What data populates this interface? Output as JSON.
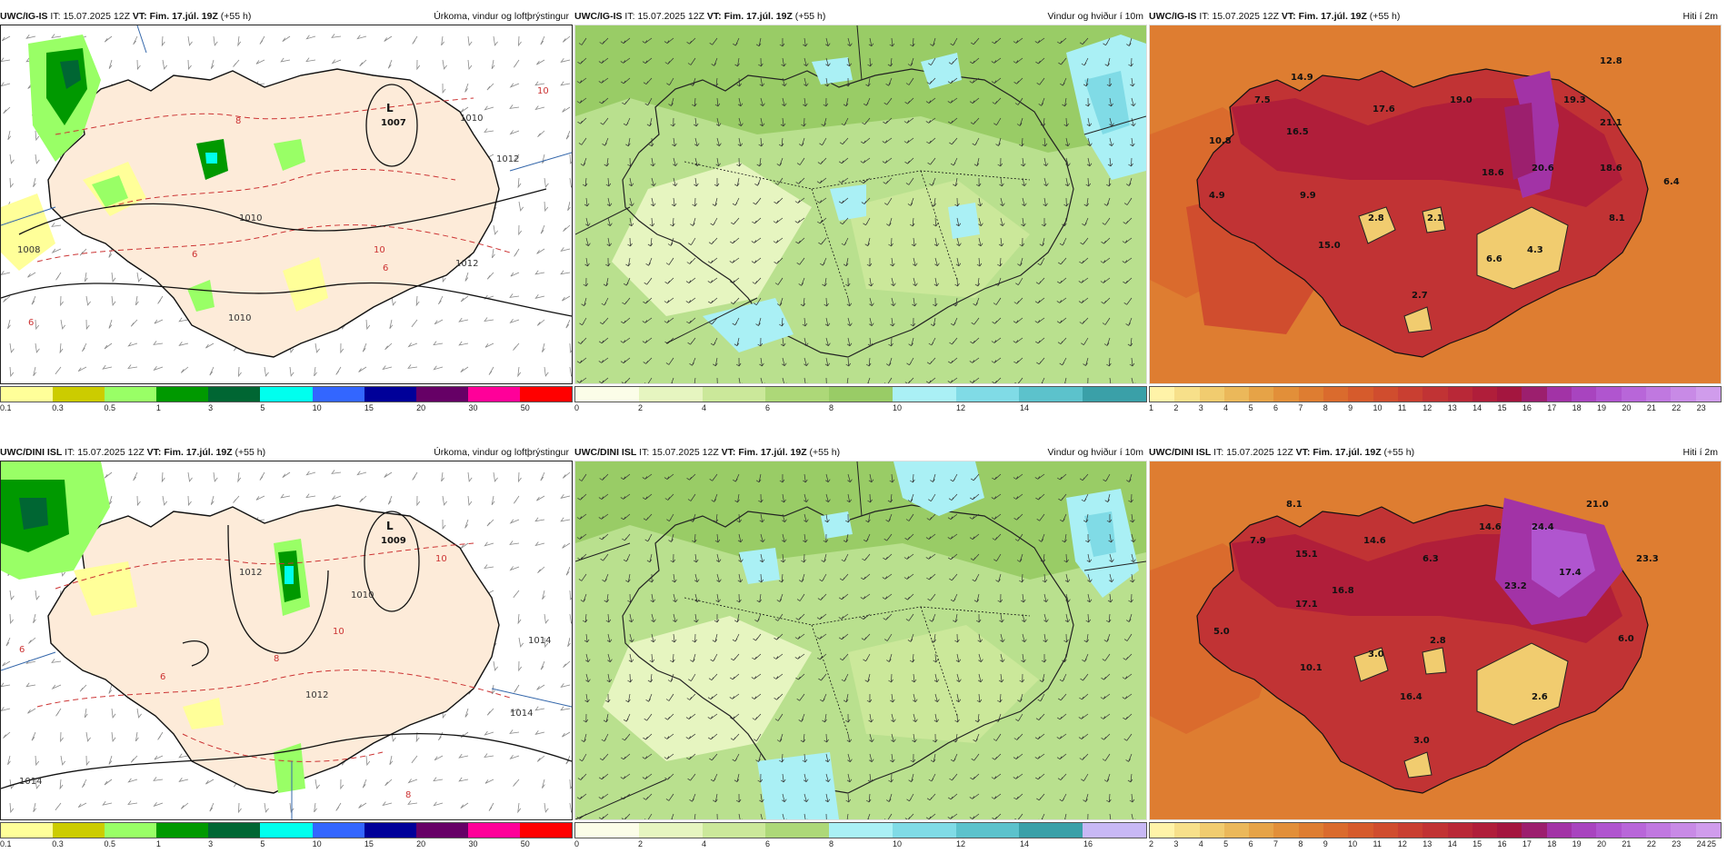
{
  "panels": [
    {
      "id": "igis-precip",
      "model": "UWC/IG-IS",
      "it_label": "IT:",
      "it_value": "15.07.2025 12Z",
      "vt_label": "VT:",
      "vt_value": "Fim. 17.júl. 19Z",
      "lead": "(+55 h)",
      "product": "Úrkoma, vindur og loftþrýstingur",
      "low_letter": "L",
      "low_value": "1007",
      "isobar_labels": [
        "1010",
        "1010",
        "1012",
        "1008",
        "1010",
        "1012"
      ],
      "temp_contour_labels": [
        "10",
        "8",
        "6",
        "6",
        "6",
        "10"
      ],
      "colorbar": {
        "colors": [
          "#ffff99",
          "#cccc00",
          "#99ff66",
          "#009900",
          "#006633",
          "#00ffee",
          "#3366ff",
          "#000099",
          "#660066",
          "#ff0099",
          "#ff0000"
        ],
        "labels": [
          "0.1",
          "0.3",
          "0.5",
          "1",
          "3",
          "5",
          "10",
          "15",
          "20",
          "30",
          "50"
        ]
      }
    },
    {
      "id": "igis-wind",
      "model": "UWC/IG-IS",
      "it_label": "IT:",
      "it_value": "15.07.2025 12Z",
      "vt_label": "VT:",
      "vt_value": "Fim. 17.júl. 19Z",
      "lead": "(+55 h)",
      "product": "Vindur og hviður í 10m",
      "colorbar": {
        "colors": [
          "#fbfde8",
          "#e6f5c0",
          "#cbe89a",
          "#add878",
          "#99cc66",
          "#aaf0f5",
          "#80dbe6",
          "#5cc2cc",
          "#3aa0a8"
        ],
        "labels": [
          "0",
          "2",
          "4",
          "6",
          "8",
          "10",
          "12",
          "14"
        ]
      }
    },
    {
      "id": "igis-temp",
      "model": "UWC/IG-IS",
      "it_label": "IT:",
      "it_value": "15.07.2025 12Z",
      "vt_label": "VT:",
      "vt_value": "Fim. 17.júl. 19Z",
      "lead": "(+55 h)",
      "product": "Hiti í 2m",
      "point_values": [
        "12.8",
        "14.9",
        "7.5",
        "17.6",
        "19.0",
        "19.3",
        "16.5",
        "10.8",
        "20.6",
        "21.1",
        "18.6",
        "18.6",
        "6.4",
        "4.9",
        "9.9",
        "2.8",
        "2.1",
        "8.1",
        "15.0",
        "6.6",
        "4.3",
        "2.7"
      ],
      "colorbar": {
        "colors": [
          "#fff3a8",
          "#f7e08a",
          "#f1cc6f",
          "#ebb85a",
          "#e6a347",
          "#e28f39",
          "#de7d31",
          "#da6b2d",
          "#d65b2c",
          "#d04d2e",
          "#c93f31",
          "#c13334",
          "#b92837",
          "#b01e3a",
          "#a4163f",
          "#9c1f6e",
          "#a233a6",
          "#a844bf",
          "#b055cf",
          "#b866d9",
          "#c078e0",
          "#c88ae6",
          "#d09cec"
        ],
        "labels": [
          "1",
          "2",
          "3",
          "4",
          "5",
          "6",
          "7",
          "8",
          "9",
          "10",
          "11",
          "12",
          "13",
          "14",
          "15",
          "16",
          "17",
          "18",
          "19",
          "20",
          "21",
          "22",
          "23"
        ]
      }
    },
    {
      "id": "dini-precip",
      "model": "UWC/DINI ISL",
      "it_label": "IT:",
      "it_value": "15.07.2025 12Z",
      "vt_label": "VT:",
      "vt_value": "Fim. 17.júl. 19Z",
      "lead": "(+55 h)",
      "product": "Úrkoma, vindur og loftþrýstingur",
      "low_letter": "L",
      "low_value": "1009",
      "isobar_labels": [
        "1012",
        "1010",
        "1014",
        "1014",
        "1014",
        "1012"
      ],
      "temp_contour_labels": [
        "10",
        "8",
        "6",
        "10",
        "8",
        "6"
      ],
      "colorbar": {
        "colors": [
          "#ffff99",
          "#cccc00",
          "#99ff66",
          "#009900",
          "#006633",
          "#00ffee",
          "#3366ff",
          "#000099",
          "#660066",
          "#ff0099",
          "#ff0000"
        ],
        "labels": [
          "0.1",
          "0.3",
          "0.5",
          "1",
          "3",
          "5",
          "10",
          "15",
          "20",
          "30",
          "50"
        ]
      }
    },
    {
      "id": "dini-wind",
      "model": "UWC/DINI ISL",
      "it_label": "IT:",
      "it_value": "15.07.2025 12Z",
      "vt_label": "VT:",
      "vt_value": "Fim. 17.júl. 19Z",
      "lead": "(+55 h)",
      "product": "Vindur og hviður í 10m",
      "colorbar": {
        "colors": [
          "#fbfde8",
          "#e6f5c0",
          "#cbe89a",
          "#add878",
          "#aaf0f5",
          "#80dbe6",
          "#5cc2cc",
          "#3aa0a8",
          "#c8b8f5"
        ],
        "labels": [
          "0",
          "2",
          "4",
          "6",
          "8",
          "10",
          "12",
          "14",
          "16"
        ]
      }
    },
    {
      "id": "dini-temp",
      "model": "UWC/DINI ISL",
      "it_label": "IT:",
      "it_value": "15.07.2025 12Z",
      "vt_label": "VT:",
      "vt_value": "Fim. 17.júl. 19Z",
      "lead": "(+55 h)",
      "product": "Hiti í 2m",
      "point_values": [
        "8.1",
        "21.0",
        "7.9",
        "14.6",
        "14.6",
        "24.4",
        "15.1",
        "6.3",
        "17.4",
        "23.3",
        "16.8",
        "23.2",
        "17.1",
        "5.0",
        "3.0",
        "2.8",
        "6.0",
        "10.1",
        "16.4",
        "2.6",
        "3.0"
      ],
      "colorbar": {
        "colors": [
          "#fff3a8",
          "#f7e08a",
          "#f1cc6f",
          "#ebb85a",
          "#e6a347",
          "#e28f39",
          "#de7d31",
          "#da6b2d",
          "#d65b2c",
          "#d04d2e",
          "#c93f31",
          "#c13334",
          "#b92837",
          "#b01e3a",
          "#a4163f",
          "#9c1f6e",
          "#a233a6",
          "#a844bf",
          "#b055cf",
          "#b866d9",
          "#c078e0",
          "#c88ae6",
          "#d09cec"
        ],
        "labels": [
          "2",
          "3",
          "4",
          "5",
          "6",
          "7",
          "8",
          "9",
          "10",
          "11",
          "12",
          "13",
          "14",
          "15",
          "16",
          "17",
          "18",
          "19",
          "20",
          "21",
          "22",
          "23",
          "24",
          "25"
        ]
      }
    }
  ]
}
